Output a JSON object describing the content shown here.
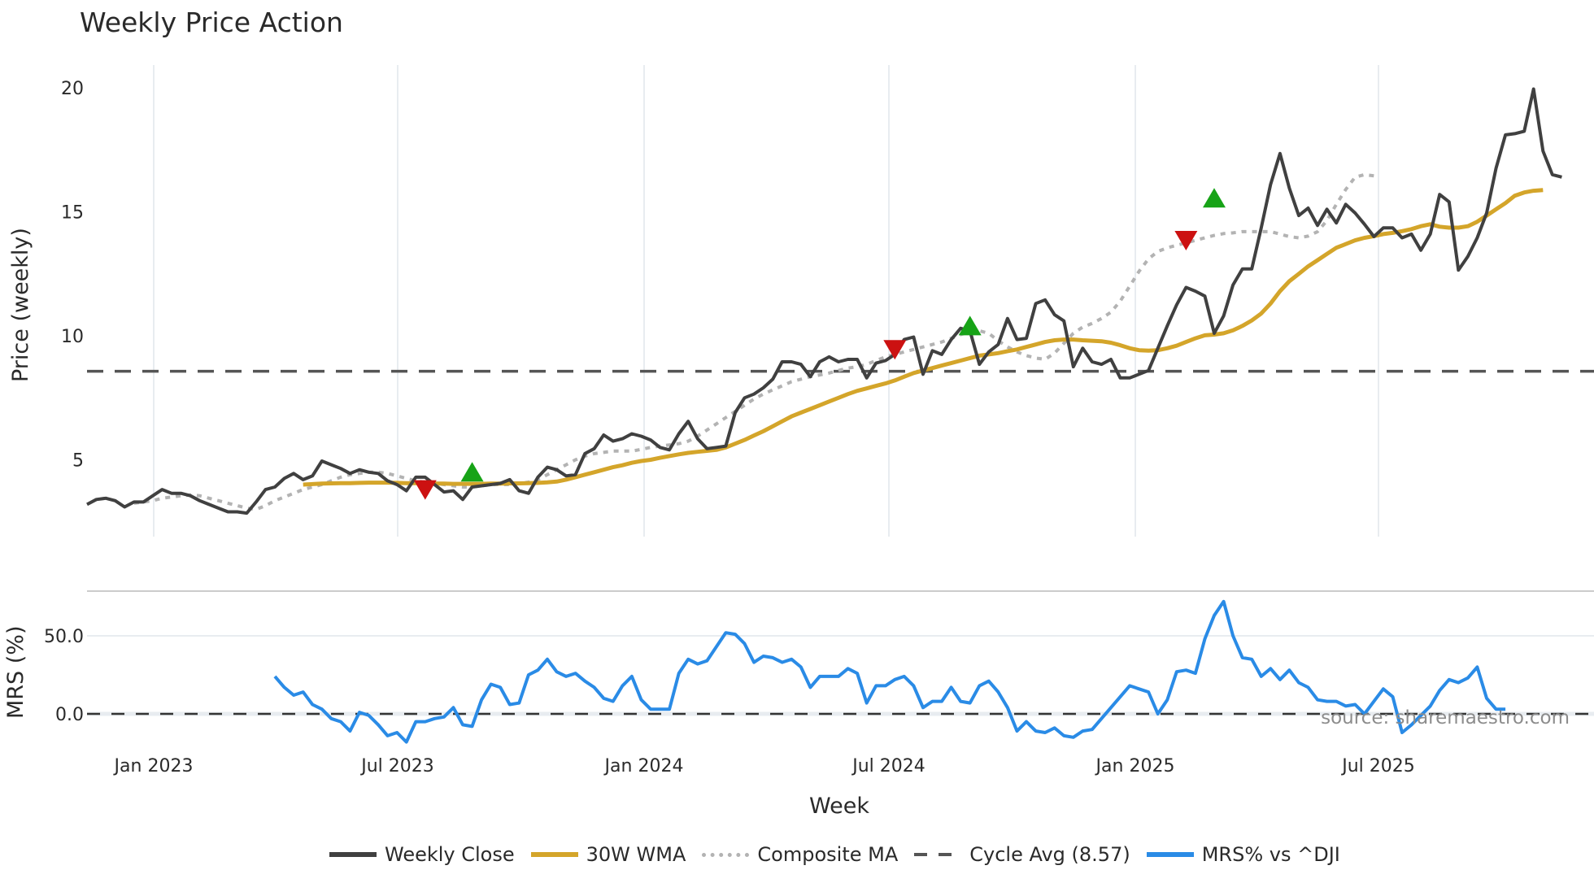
{
  "title": "Weekly Price Action",
  "price_axis_label": "Price (weekly)",
  "mrs_axis_label": "MRS (%)",
  "x_axis_label": "Week",
  "source_text": "source: sharemaestro.com",
  "legend": [
    {
      "label": "Weekly Close",
      "color": "#404040",
      "style": "solid"
    },
    {
      "label": "30W WMA",
      "color": "#d4a52a",
      "style": "solid"
    },
    {
      "label": "Composite MA",
      "color": "#b3b3b3",
      "style": "dotted"
    },
    {
      "label": "Cycle Avg (8.57)",
      "color": "#555555",
      "style": "dashed"
    },
    {
      "label": "MRS% vs ^DJI",
      "color": "#2a8be6",
      "style": "solid"
    }
  ],
  "colors": {
    "close": "#404040",
    "wma": "#d4a52a",
    "composite": "#b3b3b3",
    "cycle": "#555555",
    "mrs": "#2a8be6",
    "buy": "#17a317",
    "sell": "#cc1111",
    "grid": "#e8ecf0"
  },
  "chart_data": [
    {
      "type": "line",
      "title": "Weekly Price Action",
      "xlabel": "Week",
      "ylabel": "Price (weekly)",
      "yticks": [
        5,
        10,
        15,
        20
      ],
      "xticks": [
        "Jan 2023",
        "Jul 2023",
        "Jan 2024",
        "Jul 2024",
        "Jan 2025",
        "Jul 2025"
      ],
      "ylim": [
        2,
        21
      ],
      "grid": true,
      "legend_position": "bottom",
      "cycle_avg": 8.57,
      "series": [
        {
          "name": "Weekly Close",
          "start_index": 0,
          "values": [
            3.2,
            3.4,
            3.45,
            3.35,
            3.1,
            3.3,
            3.3,
            3.55,
            3.8,
            3.65,
            3.65,
            3.55,
            3.35,
            3.2,
            3.05,
            2.9,
            2.9,
            2.85,
            3.3,
            3.8,
            3.9,
            4.25,
            4.45,
            4.2,
            4.35,
            4.95,
            4.8,
            4.65,
            4.45,
            4.6,
            4.5,
            4.45,
            4.15,
            4.0,
            3.75,
            4.3,
            4.3,
            4.0,
            3.7,
            3.75,
            3.4,
            3.9,
            3.95,
            4.0,
            4.05,
            4.2,
            3.75,
            3.65,
            4.3,
            4.7,
            4.6,
            4.35,
            4.4,
            5.25,
            5.45,
            6.0,
            5.75,
            5.85,
            6.05,
            5.95,
            5.8,
            5.5,
            5.4,
            6.05,
            6.55,
            5.85,
            5.45,
            5.5,
            5.55,
            6.9,
            7.5,
            7.65,
            7.9,
            8.25,
            8.95,
            8.95,
            8.85,
            8.35,
            8.95,
            9.15,
            8.95,
            9.05,
            9.05,
            8.3,
            8.9,
            9.0,
            9.25,
            9.85,
            9.95,
            8.45,
            9.4,
            9.25,
            9.85,
            10.3,
            10.2,
            8.85,
            9.35,
            9.65,
            10.7,
            9.85,
            9.9,
            11.3,
            11.45,
            10.85,
            10.6,
            8.75,
            9.5,
            8.95,
            8.85,
            9.05,
            8.3,
            8.3,
            8.45,
            8.6,
            9.5,
            10.4,
            11.25,
            11.95,
            11.8,
            11.6,
            10.1,
            10.8,
            12.05,
            12.7,
            12.7,
            14.35,
            16.1,
            17.35,
            15.95,
            14.85,
            15.15,
            14.45,
            15.1,
            14.55,
            15.3,
            14.95,
            14.5,
            14.0,
            14.35,
            14.35,
            13.95,
            14.1,
            13.45,
            14.1,
            15.7,
            15.4,
            12.65,
            13.2,
            13.95,
            14.95,
            16.75,
            18.1,
            18.15,
            18.25,
            19.95,
            17.45,
            16.5,
            16.4
          ]
        },
        {
          "name": "30W WMA",
          "start_index": 23,
          "values": [
            4.0,
            4.02,
            4.04,
            4.05,
            4.06,
            4.06,
            4.07,
            4.08,
            4.08,
            4.08,
            4.07,
            4.06,
            4.06,
            4.05,
            4.04,
            4.04,
            4.03,
            4.03,
            4.03,
            4.03,
            4.04,
            4.04,
            4.05,
            4.05,
            4.06,
            4.07,
            4.09,
            4.12,
            4.2,
            4.3,
            4.4,
            4.5,
            4.6,
            4.7,
            4.78,
            4.88,
            4.95,
            5.0,
            5.08,
            5.15,
            5.22,
            5.28,
            5.32,
            5.36,
            5.4,
            5.5,
            5.65,
            5.8,
            5.98,
            6.15,
            6.35,
            6.55,
            6.75,
            6.9,
            7.05,
            7.2,
            7.35,
            7.5,
            7.65,
            7.78,
            7.88,
            7.98,
            8.08,
            8.2,
            8.35,
            8.5,
            8.6,
            8.7,
            8.8,
            8.9,
            9.0,
            9.1,
            9.2,
            9.25,
            9.3,
            9.38,
            9.45,
            9.55,
            9.65,
            9.75,
            9.82,
            9.85,
            9.85,
            9.82,
            9.8,
            9.78,
            9.72,
            9.62,
            9.5,
            9.42,
            9.4,
            9.42,
            9.5,
            9.6,
            9.75,
            9.9,
            10.02,
            10.05,
            10.1,
            10.22,
            10.4,
            10.62,
            10.9,
            11.3,
            11.8,
            12.2,
            12.5,
            12.8,
            13.05,
            13.3,
            13.55,
            13.7,
            13.85,
            13.95,
            14.02,
            14.1,
            14.15,
            14.22,
            14.3,
            14.42,
            14.5,
            14.4,
            14.36,
            14.36,
            14.42,
            14.6,
            14.85,
            15.1,
            15.35,
            15.65,
            15.78,
            15.85,
            15.88
          ]
        },
        {
          "name": "Composite MA",
          "start_index": 5,
          "values": [
            3.25,
            3.3,
            3.35,
            3.45,
            3.5,
            3.55,
            3.58,
            3.55,
            3.45,
            3.35,
            3.25,
            3.15,
            3.05,
            3.0,
            3.15,
            3.35,
            3.5,
            3.65,
            3.8,
            3.9,
            4.0,
            4.15,
            4.3,
            4.4,
            4.45,
            4.5,
            4.5,
            4.45,
            4.35,
            4.25,
            4.15,
            4.1,
            4.05,
            4.0,
            3.95,
            3.9,
            3.9,
            3.95,
            4.0,
            4.0,
            4.0,
            4.05,
            4.1,
            4.2,
            4.4,
            4.6,
            4.8,
            5.0,
            5.15,
            5.25,
            5.3,
            5.35,
            5.35,
            5.35,
            5.42,
            5.5,
            5.55,
            5.6,
            5.65,
            5.75,
            5.95,
            6.2,
            6.45,
            6.7,
            6.95,
            7.2,
            7.45,
            7.65,
            7.82,
            7.98,
            8.15,
            8.25,
            8.35,
            8.42,
            8.5,
            8.6,
            8.7,
            8.75,
            8.85,
            9.0,
            9.15,
            9.25,
            9.35,
            9.45,
            9.55,
            9.65,
            9.75,
            9.9,
            10.05,
            10.15,
            10.2,
            10.1,
            9.8,
            9.55,
            9.35,
            9.2,
            9.1,
            9.05,
            9.3,
            9.7,
            10.1,
            10.35,
            10.5,
            10.7,
            10.95,
            11.4,
            12.0,
            12.6,
            13.1,
            13.4,
            13.55,
            13.65,
            13.75,
            13.85,
            13.95,
            14.05,
            14.12,
            14.15,
            14.2,
            14.2,
            14.2,
            14.2,
            14.1,
            14.0,
            13.95,
            14.02,
            14.2,
            14.65,
            15.3,
            15.9,
            16.4,
            16.5,
            16.45
          ]
        },
        {
          "name": "Cycle Avg (8.57)",
          "constant": 8.57
        }
      ],
      "markers": [
        {
          "type": "sell",
          "index": 36,
          "value": 3.85
        },
        {
          "type": "buy",
          "index": 41,
          "value": 4.45
        },
        {
          "type": "sell",
          "index": 86,
          "value": 9.5
        },
        {
          "type": "buy",
          "index": 94,
          "value": 10.35
        },
        {
          "type": "sell",
          "index": 117,
          "value": 13.9
        },
        {
          "type": "buy",
          "index": 120,
          "value": 15.5
        }
      ]
    },
    {
      "type": "line",
      "ylabel": "MRS (%)",
      "yticks": [
        "0.0",
        "50.0"
      ],
      "ylim": [
        -25,
        80
      ],
      "grid": true,
      "reference_line": 0.0,
      "series": [
        {
          "name": "MRS% vs ^DJI",
          "start_index": 20,
          "values": [
            24,
            17,
            12,
            14,
            6,
            3,
            -3,
            -5,
            -11,
            1,
            -1,
            -7,
            -14,
            -12,
            -18,
            -5,
            -5,
            -3,
            -2,
            4,
            -7,
            -8,
            9,
            19,
            17,
            6,
            7,
            25,
            28,
            35,
            27,
            24,
            26,
            21,
            17,
            10,
            8,
            18,
            24,
            9,
            3,
            3,
            3,
            26,
            35,
            32,
            34,
            43,
            52,
            51,
            45,
            33,
            37,
            36,
            33,
            35,
            30,
            17,
            24,
            24,
            24,
            29,
            26,
            7,
            18,
            18,
            22,
            24,
            18,
            4,
            8,
            8,
            17,
            8,
            7,
            18,
            21,
            14,
            4,
            -11,
            -5,
            -11,
            -12,
            -9,
            -14,
            -15,
            -11,
            -10,
            -3,
            4,
            11,
            18,
            16,
            14,
            0,
            9,
            27,
            28,
            26,
            48,
            63,
            72,
            50,
            36,
            35,
            24,
            29,
            22,
            28,
            20,
            17,
            9,
            8,
            8,
            5,
            6,
            0,
            8,
            16,
            11,
            -12,
            -7,
            -1,
            5,
            15,
            22,
            20,
            23,
            30,
            10,
            3,
            3
          ]
        }
      ]
    }
  ]
}
